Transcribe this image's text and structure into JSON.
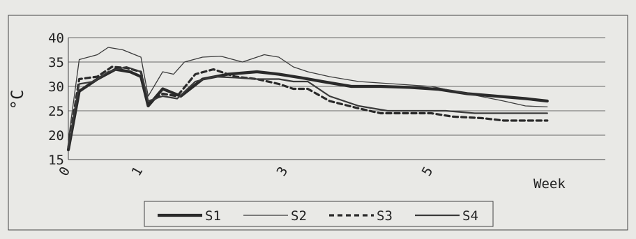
{
  "chart_data": {
    "type": "line",
    "ylabel": "°C",
    "xlabel": "Week",
    "ylim": [
      15,
      40
    ],
    "yticks": [
      15,
      20,
      25,
      30,
      35,
      40
    ],
    "xlim": [
      0,
      7.4
    ],
    "xticks": [
      {
        "value": 0,
        "label": "0"
      },
      {
        "value": 1,
        "label": "1"
      },
      {
        "value": 3,
        "label": "3"
      },
      {
        "value": 5,
        "label": "5"
      }
    ],
    "grid": "horizontal",
    "legend_position": "bottom",
    "series": [
      {
        "name": "S1",
        "color": "#2a2a2a",
        "style": "thick",
        "points": [
          [
            0,
            17
          ],
          [
            0.15,
            29
          ],
          [
            0.4,
            31.5
          ],
          [
            0.65,
            33.5
          ],
          [
            0.85,
            33
          ],
          [
            1.0,
            32
          ],
          [
            1.1,
            26
          ],
          [
            1.3,
            29.5
          ],
          [
            1.55,
            28
          ],
          [
            1.85,
            31.5
          ],
          [
            2.2,
            32.5
          ],
          [
            2.6,
            33
          ],
          [
            2.9,
            32.5
          ],
          [
            3.2,
            31.8
          ],
          [
            3.5,
            31
          ],
          [
            3.9,
            30
          ],
          [
            4.3,
            30
          ],
          [
            4.7,
            29.8
          ],
          [
            5.1,
            29.4
          ],
          [
            5.5,
            28.5
          ],
          [
            5.9,
            28
          ],
          [
            6.3,
            27.5
          ],
          [
            6.6,
            27
          ]
        ]
      },
      {
        "name": "S2",
        "color": "#3a3a3a",
        "style": "thin",
        "points": [
          [
            0,
            19
          ],
          [
            0.15,
            35.5
          ],
          [
            0.4,
            36.5
          ],
          [
            0.55,
            38
          ],
          [
            0.75,
            37.5
          ],
          [
            1.0,
            36
          ],
          [
            1.1,
            28
          ],
          [
            1.3,
            33
          ],
          [
            1.45,
            32.5
          ],
          [
            1.6,
            35
          ],
          [
            1.85,
            36
          ],
          [
            2.1,
            36.2
          ],
          [
            2.4,
            35
          ],
          [
            2.7,
            36.5
          ],
          [
            2.9,
            36
          ],
          [
            3.1,
            34
          ],
          [
            3.3,
            33
          ],
          [
            3.6,
            32
          ],
          [
            4.0,
            31
          ],
          [
            4.5,
            30.5
          ],
          [
            5.0,
            30
          ],
          [
            5.5,
            28.5
          ],
          [
            6.0,
            27
          ],
          [
            6.3,
            26
          ],
          [
            6.6,
            25.8
          ]
        ]
      },
      {
        "name": "S3",
        "color": "#2a2a2a",
        "style": "dashed",
        "points": [
          [
            0,
            17.5
          ],
          [
            0.15,
            31.5
          ],
          [
            0.4,
            32
          ],
          [
            0.6,
            34
          ],
          [
            0.8,
            33.8
          ],
          [
            1.0,
            33
          ],
          [
            1.1,
            26.5
          ],
          [
            1.3,
            28.5
          ],
          [
            1.5,
            28
          ],
          [
            1.75,
            32.5
          ],
          [
            2.0,
            33.5
          ],
          [
            2.3,
            32
          ],
          [
            2.6,
            31.5
          ],
          [
            2.9,
            30.5
          ],
          [
            3.1,
            29.5
          ],
          [
            3.3,
            29.5
          ],
          [
            3.6,
            27
          ],
          [
            4.0,
            25.5
          ],
          [
            4.3,
            24.5
          ],
          [
            4.7,
            24.5
          ],
          [
            5.0,
            24.5
          ],
          [
            5.3,
            23.8
          ],
          [
            5.7,
            23.5
          ],
          [
            6.0,
            23
          ],
          [
            6.6,
            23
          ]
        ]
      },
      {
        "name": "S4",
        "color": "#3a3a3a",
        "style": "medium",
        "points": [
          [
            0,
            17.5
          ],
          [
            0.15,
            30.5
          ],
          [
            0.35,
            31
          ],
          [
            0.55,
            33
          ],
          [
            0.8,
            34
          ],
          [
            1.0,
            33
          ],
          [
            1.1,
            27
          ],
          [
            1.3,
            28
          ],
          [
            1.5,
            27.5
          ],
          [
            1.75,
            31
          ],
          [
            2.0,
            32
          ],
          [
            2.3,
            31.8
          ],
          [
            2.6,
            31.5
          ],
          [
            2.9,
            31.5
          ],
          [
            3.1,
            31
          ],
          [
            3.3,
            31
          ],
          [
            3.6,
            28
          ],
          [
            4.0,
            26
          ],
          [
            4.4,
            25
          ],
          [
            4.8,
            25
          ],
          [
            5.2,
            25
          ],
          [
            5.6,
            24.5
          ],
          [
            6.0,
            24.5
          ],
          [
            6.6,
            24.5
          ]
        ]
      }
    ]
  }
}
